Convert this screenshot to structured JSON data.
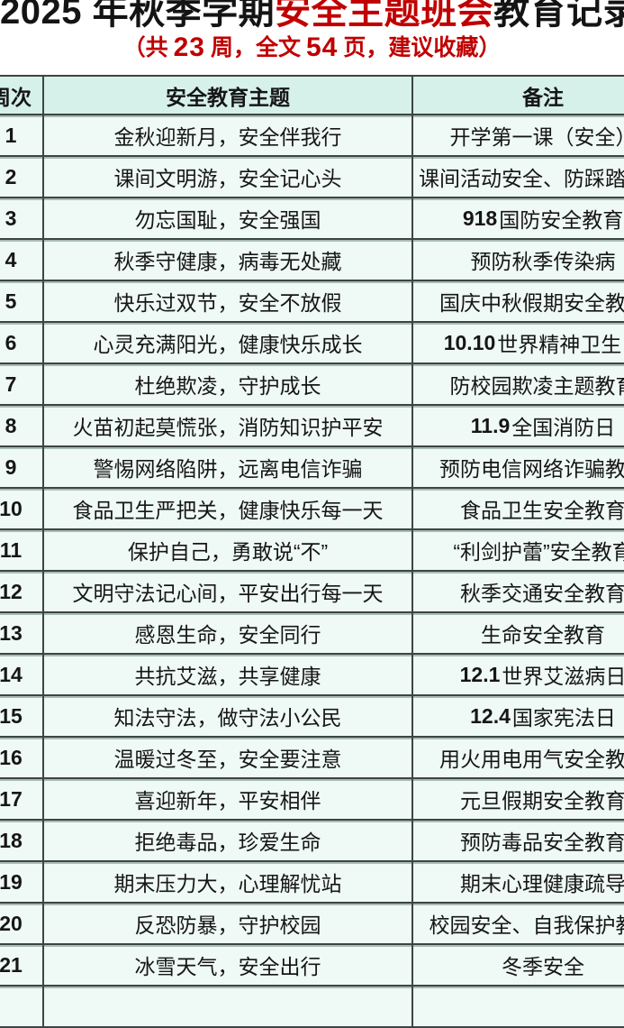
{
  "title": {
    "black1": "2025 年秋季学期",
    "red": "安全主题班会",
    "black2": "教育记录"
  },
  "subtitle": {
    "p1": "（共",
    "n1": "23",
    "p2": "周，全文",
    "n2": "54",
    "p3": "页，建议收藏）"
  },
  "colors": {
    "accent_red": "#c00000",
    "header_bg": "#d6f0ea",
    "row_bg": "#eff9f6",
    "border": "#3c4543"
  },
  "table": {
    "headers": [
      "周次",
      "安全教育主题",
      "备注"
    ],
    "rows": [
      {
        "week": "1",
        "theme": "金秋迎新月，安全伴我行",
        "note_bold": "",
        "note": "开学第一课（安全）"
      },
      {
        "week": "2",
        "theme": "课间文明游，安全记心头",
        "note_bold": "",
        "note": "课间活动安全、防踩踏教育"
      },
      {
        "week": "3",
        "theme": "勿忘国耻，安全强国",
        "note_bold": "918",
        "note": " 国防安全教育"
      },
      {
        "week": "4",
        "theme": "秋季守健康，病毒无处藏",
        "note_bold": "",
        "note": "预防秋季传染病"
      },
      {
        "week": "5",
        "theme": "快乐过双节，安全不放假",
        "note_bold": "",
        "note": "国庆中秋假期安全教育"
      },
      {
        "week": "6",
        "theme": "心灵充满阳光，健康快乐成长",
        "note_bold": "10.10",
        "note": " 世界精神卫生日"
      },
      {
        "week": "7",
        "theme": "杜绝欺凌，守护成长",
        "note_bold": "",
        "note": "防校园欺凌主题教育"
      },
      {
        "week": "8",
        "theme": "火苗初起莫慌张，消防知识护平安",
        "note_bold": "11.9",
        "note": " 全国消防日"
      },
      {
        "week": "9",
        "theme": "警惕网络陷阱，远离电信诈骗",
        "note_bold": "",
        "note": "预防电信网络诈骗教育"
      },
      {
        "week": "10",
        "theme": "食品卫生严把关，健康快乐每一天",
        "note_bold": "",
        "note": "食品卫生安全教育"
      },
      {
        "week": "11",
        "theme": "保护自己，勇敢说“不”",
        "note_bold": "",
        "note": "“利剑护蕾”安全教育"
      },
      {
        "week": "12",
        "theme": "文明守法记心间，平安出行每一天",
        "note_bold": "",
        "note": "秋季交通安全教育"
      },
      {
        "week": "13",
        "theme": "感恩生命，安全同行",
        "note_bold": "",
        "note": "生命安全教育"
      },
      {
        "week": "14",
        "theme": "共抗艾滋，共享健康",
        "note_bold": "12.1",
        "note": " 世界艾滋病日"
      },
      {
        "week": "15",
        "theme": "知法守法，做守法小公民",
        "note_bold": "12.4",
        "note": " 国家宪法日"
      },
      {
        "week": "16",
        "theme": "温暖过冬至，安全要注意",
        "note_bold": "",
        "note": "用火用电用气安全教育"
      },
      {
        "week": "17",
        "theme": "喜迎新年，平安相伴",
        "note_bold": "",
        "note": "元旦假期安全教育"
      },
      {
        "week": "18",
        "theme": "拒绝毒品，珍爱生命",
        "note_bold": "",
        "note": "预防毒品安全教育"
      },
      {
        "week": "19",
        "theme": "期末压力大，心理解忧站",
        "note_bold": "",
        "note": "期末心理健康疏导"
      },
      {
        "week": "20",
        "theme": "反恐防暴，守护校园",
        "note_bold": "",
        "note": "校园安全、自我保护教育"
      },
      {
        "week": "21",
        "theme": "冰雪天气，安全出行",
        "note_bold": "",
        "note": "冬季安全"
      },
      {
        "week": "",
        "theme": "",
        "note_bold": "",
        "note": ""
      }
    ]
  }
}
